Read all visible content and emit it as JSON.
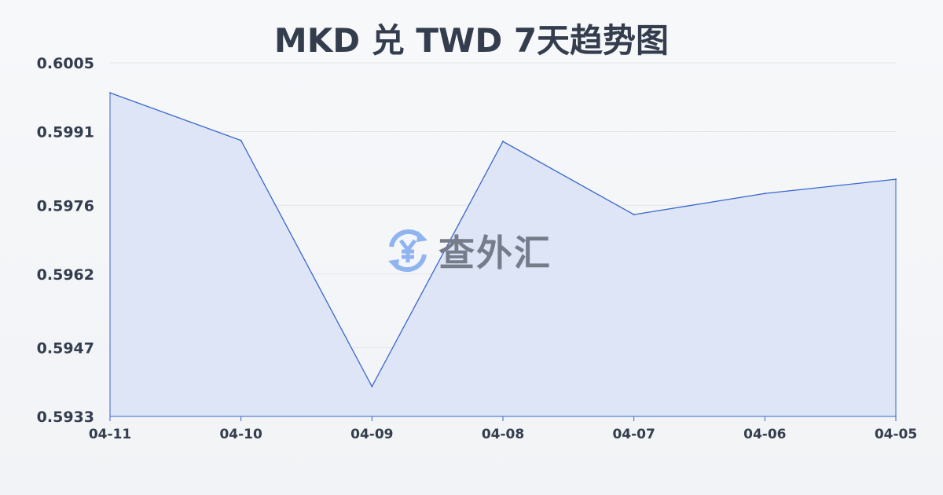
{
  "chart_data": {
    "type": "area",
    "title": "MKD 兑 TWD 7天趋势图",
    "xlabel": "",
    "ylabel": "",
    "categories": [
      "04-11",
      "04-10",
      "04-09",
      "04-08",
      "04-07",
      "04-06",
      "04-05"
    ],
    "values": [
      0.59989,
      0.59892,
      0.59391,
      0.5989,
      0.59741,
      0.59784,
      0.59813
    ],
    "ylim": [
      0.5933,
      0.6005
    ],
    "yticks": [
      "0.6005",
      "0.5991",
      "0.5976",
      "0.5962",
      "0.5947",
      "0.5933"
    ],
    "grid": true,
    "colors": {
      "line": "#3a66cc",
      "fill": "#dbe4f6",
      "grid": "#e3e6ea",
      "text": "#333d4d"
    }
  },
  "watermark": {
    "text": "查外汇",
    "icon": "yen-exchange-icon",
    "icon_color": "#8fb4f0"
  }
}
